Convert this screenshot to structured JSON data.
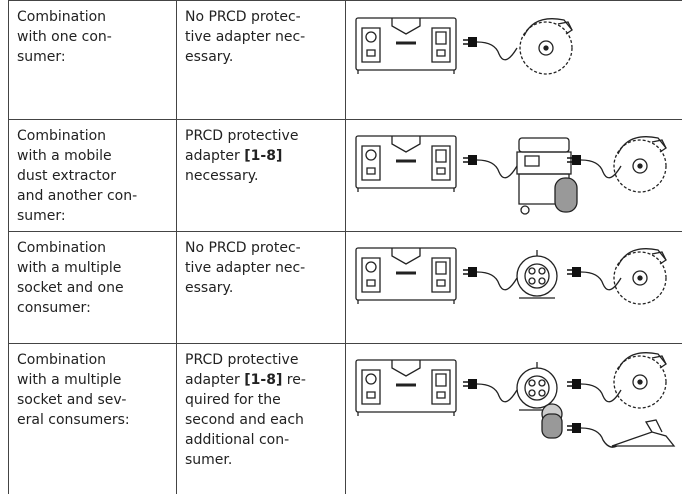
{
  "table": {
    "rows": [
      {
        "combination": [
          "Combination",
          "with one con-",
          "sumer:"
        ],
        "requirement": [
          "No PRCD protec-",
          "tive adapter nec-",
          "essary."
        ]
      },
      {
        "combination": [
          "Combination",
          "with a mobile",
          "dust extractor",
          "and another con-",
          "sumer:"
        ],
        "requirement": [
          "PRCD protective",
          [
            "adapter ",
            {
              "bold": "[1-8]"
            }
          ],
          "necessary."
        ]
      },
      {
        "combination": [
          "Combination",
          "with a multiple",
          "socket and one",
          "consumer:"
        ],
        "requirement": [
          "No PRCD protec-",
          "tive adapter nec-",
          "essary."
        ]
      },
      {
        "combination": [
          "Combination",
          "with a multiple",
          "socket and sev-",
          "eral consumers:"
        ],
        "requirement": [
          "PRCD protective",
          [
            "adapter ",
            {
              "bold": "[1-8]"
            },
            " re-"
          ],
          "quired for the",
          "second and each",
          "additional con-",
          "sumer."
        ]
      }
    ]
  }
}
